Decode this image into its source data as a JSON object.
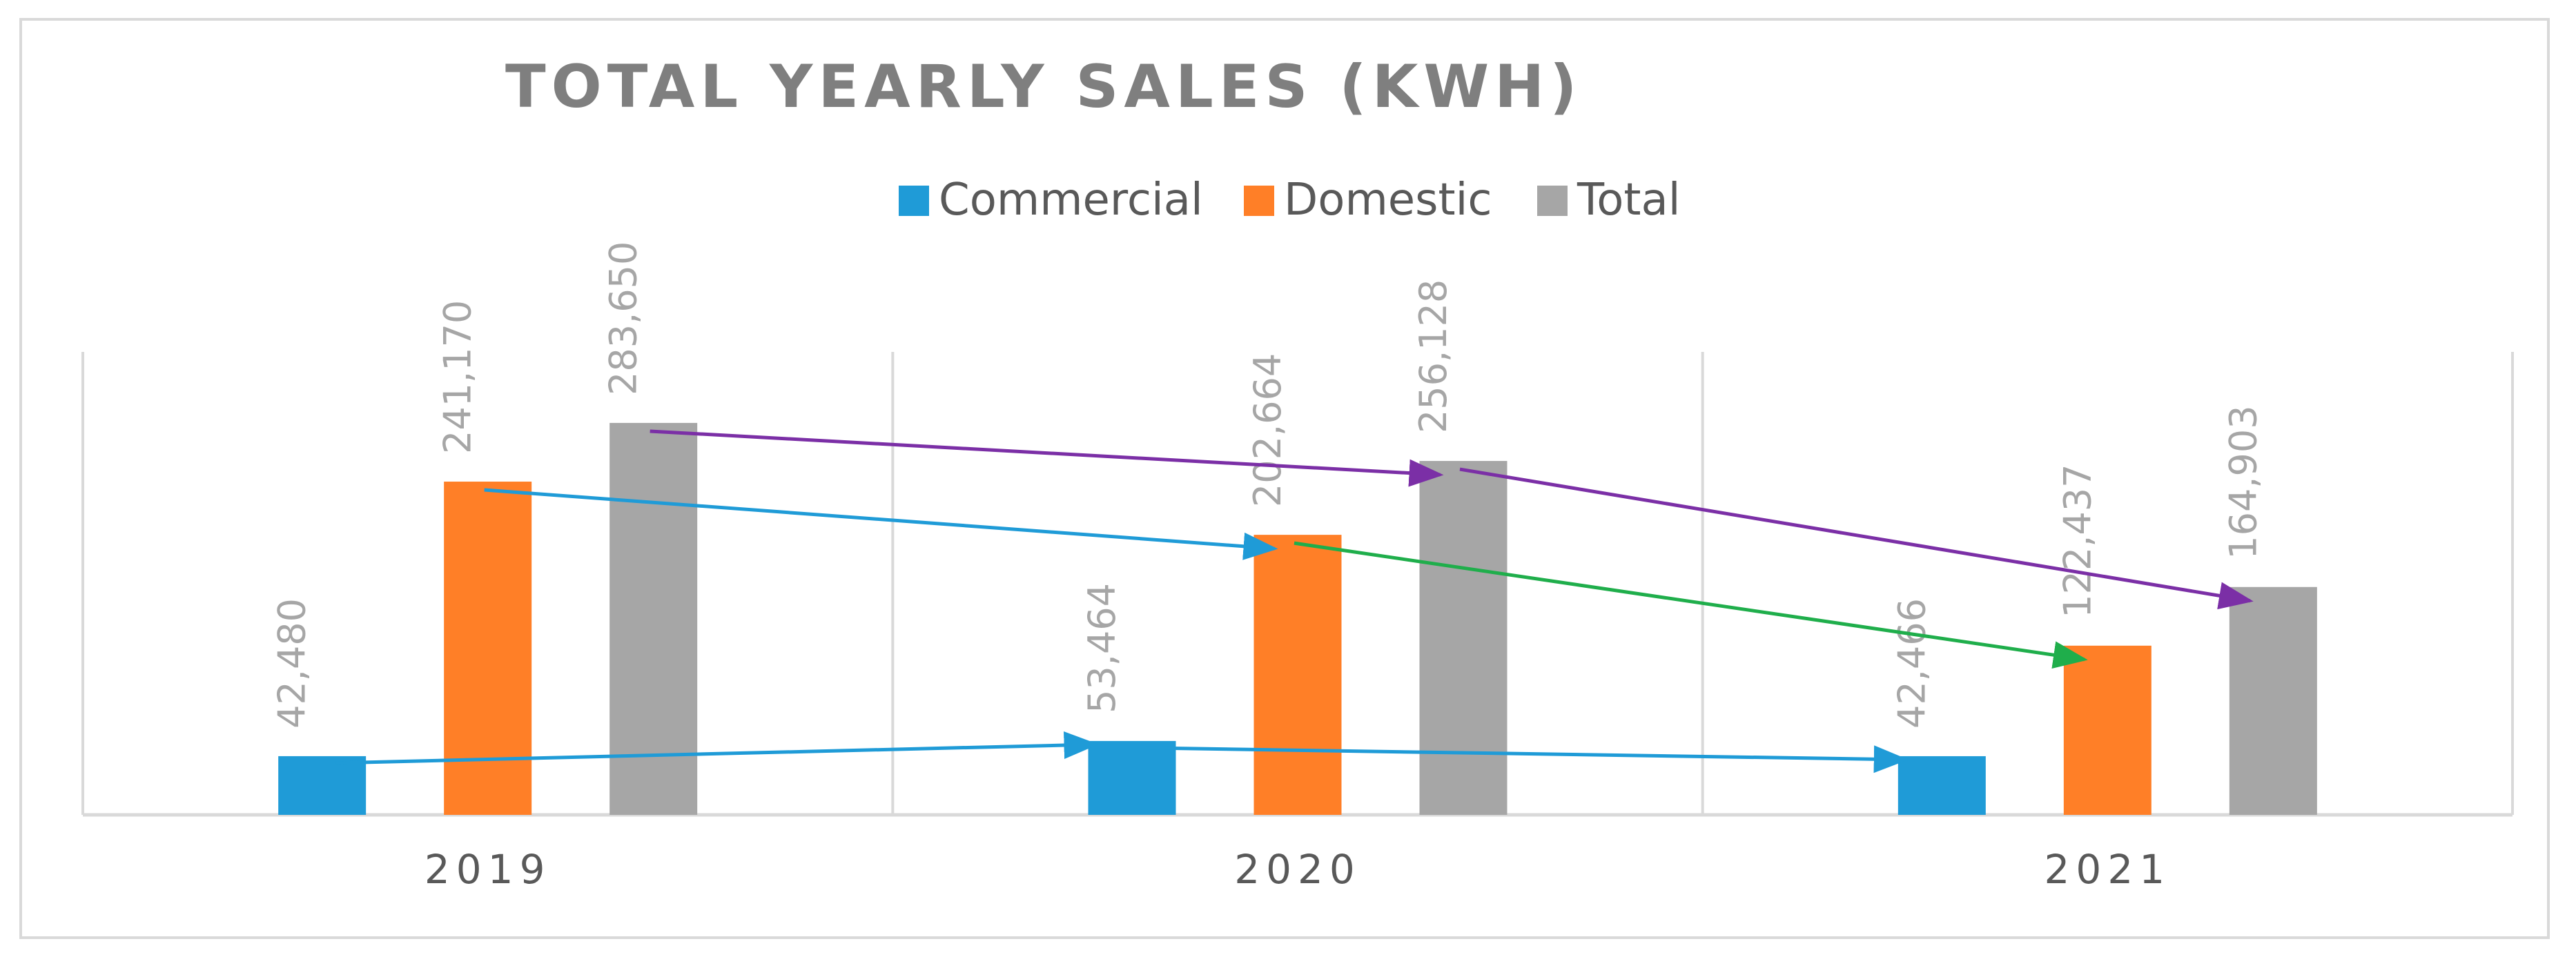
{
  "chart_data": {
    "type": "bar",
    "title": "TOTAL YEARLY SALES (KWH)",
    "xlabel": "",
    "ylabel": "",
    "categories": [
      "2019",
      "2020",
      "2021"
    ],
    "series": [
      {
        "name": "Commercial",
        "color": "#1f9bd7",
        "values": [
          42480,
          53464,
          42466
        ],
        "labels": [
          "42,480",
          "53,464",
          "42,466"
        ]
      },
      {
        "name": "Domestic",
        "color": "#ff7f27",
        "values": [
          241170,
          202664,
          122437
        ],
        "labels": [
          "241,170",
          "202,664",
          "122,437"
        ]
      },
      {
        "name": "Total",
        "color": "#a6a6a6",
        "values": [
          283650,
          256128,
          164903
        ],
        "labels": [
          "283,650",
          "256,128",
          "164,903"
        ]
      }
    ],
    "ylim": [
      0,
      300000
    ],
    "grid": "vertical category separators",
    "legend": "top-center",
    "annotations": [
      {
        "kind": "arrow",
        "color": "#1f9bd7",
        "from": {
          "series": "Commercial",
          "category": "2019"
        },
        "to": {
          "series": "Commercial",
          "category": "2020"
        }
      },
      {
        "kind": "arrow",
        "color": "#1f9bd7",
        "from": {
          "series": "Commercial",
          "category": "2020"
        },
        "to": {
          "series": "Commercial",
          "category": "2021"
        }
      },
      {
        "kind": "arrow",
        "color": "#1f9bd7",
        "from": {
          "series": "Domestic",
          "category": "2019"
        },
        "to": {
          "series": "Domestic",
          "category": "2020"
        }
      },
      {
        "kind": "arrow",
        "color": "#1fae4b",
        "from": {
          "series": "Domestic",
          "category": "2020"
        },
        "to": {
          "series": "Domestic",
          "category": "2021"
        }
      },
      {
        "kind": "arrow",
        "color": "#7b2fa6",
        "from": {
          "series": "Total",
          "category": "2019"
        },
        "to": {
          "series": "Total",
          "category": "2020"
        }
      },
      {
        "kind": "arrow",
        "color": "#7b2fa6",
        "from": {
          "series": "Total",
          "category": "2020"
        },
        "to": {
          "series": "Total",
          "category": "2021"
        }
      }
    ]
  }
}
